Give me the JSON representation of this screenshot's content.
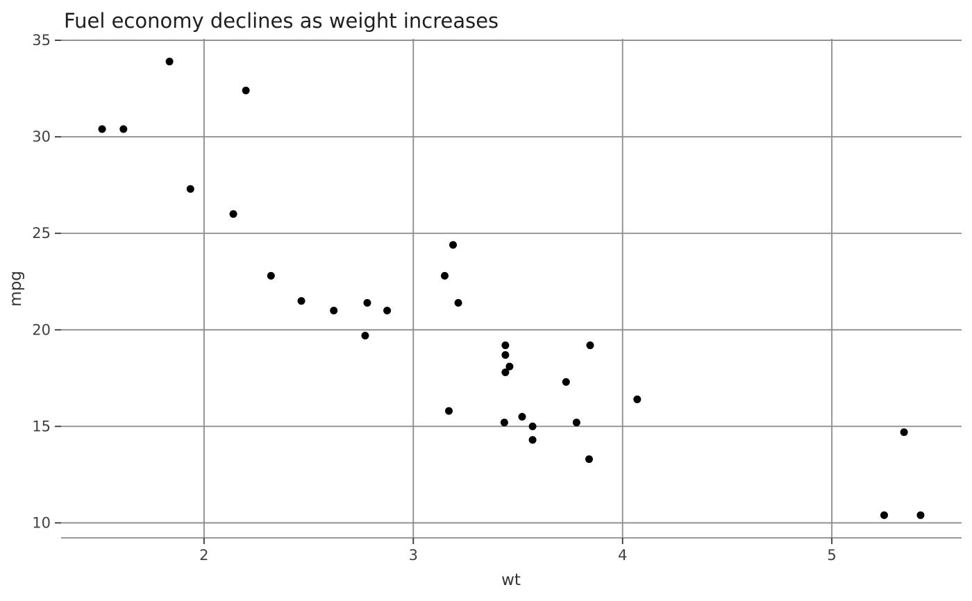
{
  "chart_data": {
    "type": "scatter",
    "title": "Fuel economy declines as weight increases",
    "xlabel": "wt",
    "ylabel": "mpg",
    "x_ticks": [
      2,
      3,
      4,
      5
    ],
    "y_ticks": [
      10,
      15,
      20,
      25,
      30,
      35
    ],
    "xlim": [
      1.317,
      5.62
    ],
    "ylim": [
      9.225,
      35.075
    ],
    "grid": true,
    "legend": false,
    "background_color": "#ffffff",
    "point_color": "#000000",
    "grid_color": "#8a8a8a",
    "axis_line_color": "#8a8a8a",
    "tick_mark_color": "#333333",
    "tick_label_color": "#404040",
    "axis_label_color": "#333333",
    "title_color": "#1f1f1f",
    "points": [
      [
        2.62,
        21.0
      ],
      [
        2.875,
        21.0
      ],
      [
        2.32,
        22.8
      ],
      [
        3.215,
        21.4
      ],
      [
        3.44,
        18.7
      ],
      [
        3.46,
        18.1
      ],
      [
        3.57,
        14.3
      ],
      [
        3.19,
        24.4
      ],
      [
        3.15,
        22.8
      ],
      [
        3.44,
        19.2
      ],
      [
        3.44,
        17.8
      ],
      [
        4.07,
        16.4
      ],
      [
        3.73,
        17.3
      ],
      [
        3.78,
        15.2
      ],
      [
        5.25,
        10.4
      ],
      [
        5.424,
        10.4
      ],
      [
        5.345,
        14.7
      ],
      [
        2.2,
        32.4
      ],
      [
        1.615,
        30.4
      ],
      [
        1.835,
        33.9
      ],
      [
        2.465,
        21.5
      ],
      [
        3.52,
        15.5
      ],
      [
        3.435,
        15.2
      ],
      [
        3.84,
        13.3
      ],
      [
        3.845,
        19.2
      ],
      [
        1.935,
        27.3
      ],
      [
        2.14,
        26.0
      ],
      [
        1.513,
        30.4
      ],
      [
        3.17,
        15.8
      ],
      [
        2.77,
        19.7
      ],
      [
        3.57,
        15.0
      ],
      [
        2.78,
        21.4
      ]
    ]
  }
}
